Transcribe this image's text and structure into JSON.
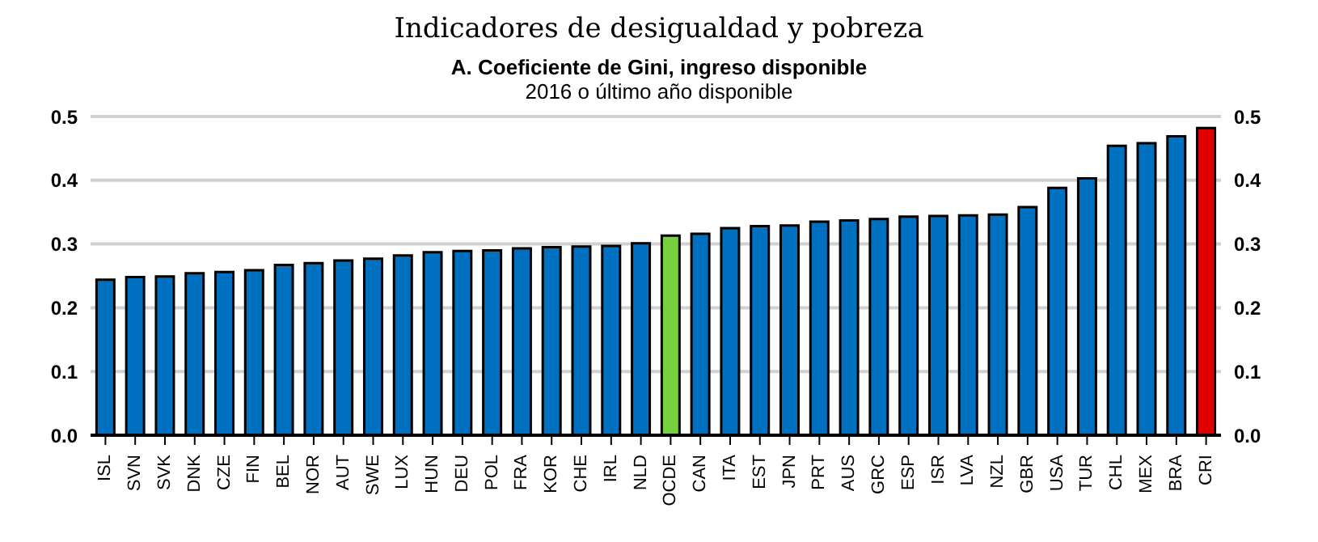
{
  "chart_data": {
    "type": "bar",
    "title": "Indicadores de desigualdad y pobreza",
    "subtitle": "A. Coeficiente de Gini, ingreso disponible\n2016 o último año disponible",
    "categories": [
      "ISL",
      "SVN",
      "SVK",
      "DNK",
      "CZE",
      "FIN",
      "BEL",
      "NOR",
      "AUT",
      "SWE",
      "LUX",
      "HUN",
      "DEU",
      "POL",
      "FRA",
      "KOR",
      "CHE",
      "IRL",
      "NLD",
      "OCDE",
      "CAN",
      "ITA",
      "EST",
      "JPN",
      "PRT",
      "AUS",
      "GRC",
      "ESP",
      "ISR",
      "LVA",
      "NZL",
      "GBR",
      "USA",
      "TUR",
      "CHL",
      "MEX",
      "BRA",
      "CRI"
    ],
    "values": [
      0.244,
      0.248,
      0.249,
      0.254,
      0.256,
      0.259,
      0.267,
      0.27,
      0.274,
      0.277,
      0.282,
      0.287,
      0.289,
      0.29,
      0.293,
      0.295,
      0.296,
      0.297,
      0.301,
      0.313,
      0.316,
      0.325,
      0.328,
      0.329,
      0.335,
      0.337,
      0.339,
      0.343,
      0.344,
      0.345,
      0.346,
      0.358,
      0.388,
      0.403,
      0.454,
      0.458,
      0.469,
      0.482
    ],
    "colors": [
      "#0070c0",
      "#0070c0",
      "#0070c0",
      "#0070c0",
      "#0070c0",
      "#0070c0",
      "#0070c0",
      "#0070c0",
      "#0070c0",
      "#0070c0",
      "#0070c0",
      "#0070c0",
      "#0070c0",
      "#0070c0",
      "#0070c0",
      "#0070c0",
      "#0070c0",
      "#0070c0",
      "#0070c0",
      "#77d13f",
      "#0070c0",
      "#0070c0",
      "#0070c0",
      "#0070c0",
      "#0070c0",
      "#0070c0",
      "#0070c0",
      "#0070c0",
      "#0070c0",
      "#0070c0",
      "#0070c0",
      "#0070c0",
      "#0070c0",
      "#0070c0",
      "#0070c0",
      "#0070c0",
      "#0070c0",
      "#e00000"
    ],
    "ylim": [
      0,
      0.5
    ],
    "yticks": [
      {
        "value": 0,
        "label": "0.0"
      },
      0.1,
      0.2,
      0.3,
      0.4,
      0.5
    ],
    "y2lim": [
      0,
      0.5
    ],
    "y2ticks": [
      {
        "value": 0,
        "label": "0.0"
      },
      0.1,
      0.2,
      0.3,
      0.4,
      0.5
    ],
    "grid": "y"
  }
}
